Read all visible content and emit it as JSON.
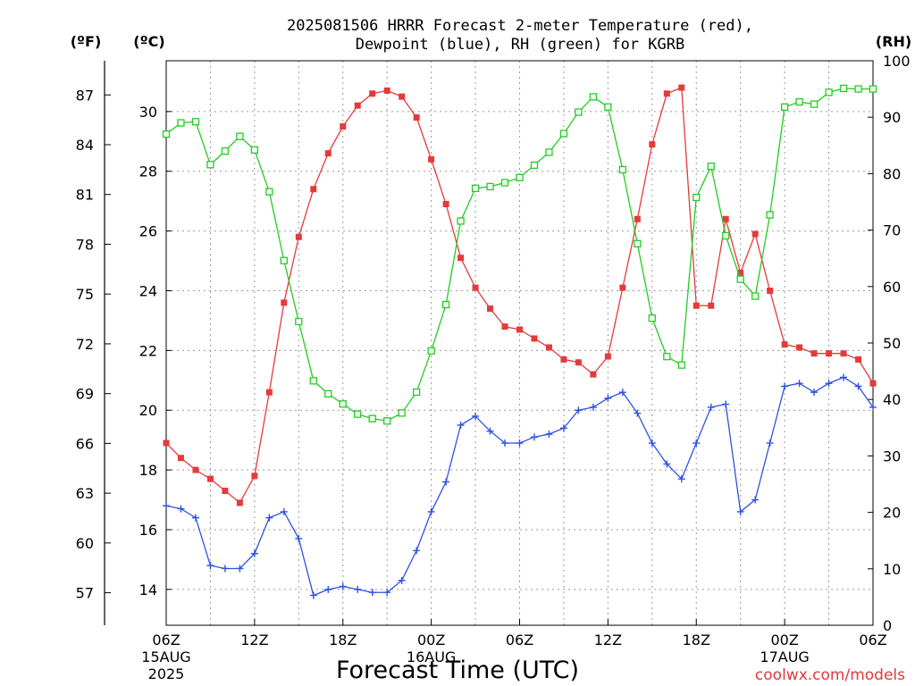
{
  "chart_data": {
    "type": "line",
    "title_line1": "2025081506 HRRR Forecast 2-meter Temperature (red),",
    "title_line2": "Dewpoint (blue), RH (green) for KGRB",
    "xlabel": "Forecast Time (UTC)",
    "credit": "coolwx.com/models",
    "units": {
      "fahrenheit": "(ºF)",
      "celsius": "(ºC)",
      "rh": "(RH)"
    },
    "x_hours_range": [
      0,
      48
    ],
    "x_ticks": [
      {
        "hour": 0,
        "label": "06Z",
        "date": "15AUG",
        "year": "2025"
      },
      {
        "hour": 6,
        "label": "12Z"
      },
      {
        "hour": 12,
        "label": "18Z"
      },
      {
        "hour": 18,
        "label": "00Z",
        "date": "16AUG"
      },
      {
        "hour": 24,
        "label": "06Z"
      },
      {
        "hour": 30,
        "label": "12Z"
      },
      {
        "hour": 36,
        "label": "18Z"
      },
      {
        "hour": 42,
        "label": "00Z",
        "date": "17AUG"
      },
      {
        "hour": 48,
        "label": "06Z"
      }
    ],
    "celsius_axis": {
      "range": [
        12.8,
        31.7
      ],
      "ticks": [
        14,
        16,
        18,
        20,
        22,
        24,
        26,
        28,
        30
      ]
    },
    "fahrenheit_axis": {
      "ticks": [
        57,
        60,
        63,
        66,
        69,
        72,
        75,
        78,
        81,
        84,
        87
      ]
    },
    "rh_axis": {
      "range": [
        0,
        100
      ],
      "ticks": [
        0,
        10,
        20,
        30,
        40,
        50,
        60,
        70,
        80,
        90,
        100
      ]
    },
    "series": [
      {
        "name": "Temperature",
        "axis": "celsius",
        "color": "#e53a3a",
        "marker": "filled-square",
        "values": [
          18.9,
          18.4,
          18.0,
          17.7,
          17.3,
          16.9,
          17.8,
          20.6,
          23.6,
          25.8,
          27.4,
          28.6,
          29.5,
          30.2,
          30.6,
          30.7,
          30.5,
          29.8,
          28.4,
          26.9,
          25.1,
          24.1,
          23.4,
          22.8,
          22.7,
          22.4,
          22.1,
          21.7,
          21.6,
          21.2,
          21.8,
          24.1,
          26.4,
          28.9,
          30.6,
          30.8,
          23.5,
          23.5,
          26.4,
          24.6,
          25.9,
          24.0,
          22.2,
          22.1,
          21.9,
          21.9,
          21.9,
          21.7,
          20.9
        ]
      },
      {
        "name": "Dewpoint",
        "axis": "celsius",
        "color": "#2f52e0",
        "marker": "plus",
        "values": [
          16.8,
          16.7,
          16.4,
          14.8,
          14.7,
          14.7,
          15.2,
          16.4,
          16.6,
          15.7,
          13.8,
          14.0,
          14.1,
          14.0,
          13.9,
          13.9,
          14.3,
          15.3,
          16.6,
          17.6,
          19.5,
          19.8,
          19.3,
          18.9,
          18.9,
          19.1,
          19.2,
          19.4,
          20.0,
          20.1,
          20.4,
          20.6,
          19.9,
          18.9,
          18.2,
          17.7,
          18.9,
          20.1,
          20.2,
          16.6,
          17.0,
          18.9,
          20.8,
          20.9,
          20.6,
          20.9,
          21.1,
          20.8,
          20.1
        ]
      },
      {
        "name": "RH",
        "axis": "rh",
        "color": "#22cc22",
        "marker": "open-square",
        "values": [
          87.0,
          89.0,
          89.2,
          81.6,
          84.0,
          86.6,
          84.2,
          76.8,
          64.6,
          53.8,
          43.3,
          41.0,
          39.2,
          37.4,
          36.6,
          36.2,
          37.6,
          41.3,
          48.6,
          56.8,
          71.6,
          77.4,
          77.7,
          78.4,
          79.3,
          81.5,
          83.8,
          87.1,
          90.9,
          93.6,
          91.8,
          80.7,
          67.6,
          54.4,
          47.6,
          46.1,
          75.8,
          81.3,
          69.0,
          61.3,
          58.3,
          72.7,
          91.8,
          92.7,
          92.3,
          94.4,
          95.1,
          95.0,
          95.0
        ]
      }
    ]
  }
}
